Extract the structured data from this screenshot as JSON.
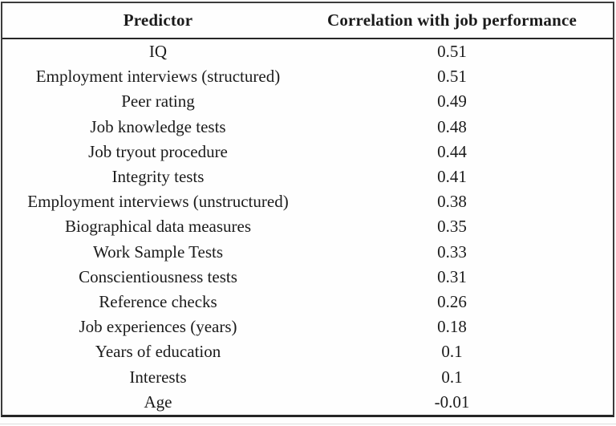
{
  "chart_data": {
    "type": "table",
    "columns": [
      "Predictor",
      "Correlation with job performance"
    ],
    "rows": [
      [
        "IQ",
        "0.51"
      ],
      [
        "Employment interviews (structured)",
        "0.51"
      ],
      [
        "Peer rating",
        "0.49"
      ],
      [
        "Job knowledge tests",
        "0.48"
      ],
      [
        "Job tryout procedure",
        "0.44"
      ],
      [
        "Integrity tests",
        "0.41"
      ],
      [
        "Employment interviews (unstructured)",
        "0.38"
      ],
      [
        "Biographical data measures",
        "0.35"
      ],
      [
        "Work Sample Tests",
        "0.33"
      ],
      [
        "Conscientiousness tests",
        "0.31"
      ],
      [
        "Reference checks",
        "0.26"
      ],
      [
        "Job experiences (years)",
        "0.18"
      ],
      [
        "Years of education",
        "0.1"
      ],
      [
        "Interests",
        "0.1"
      ],
      [
        "Age",
        "-0.01"
      ]
    ],
    "layout": {
      "grid": "outer border, header rule and bottom rule only; no row or column dividers",
      "header_style": "bold, centered",
      "cell_alignment": "centered"
    },
    "colors": {
      "text": "#1b1b1b",
      "border": "#2e2e2e",
      "background": "#fefefe"
    }
  }
}
